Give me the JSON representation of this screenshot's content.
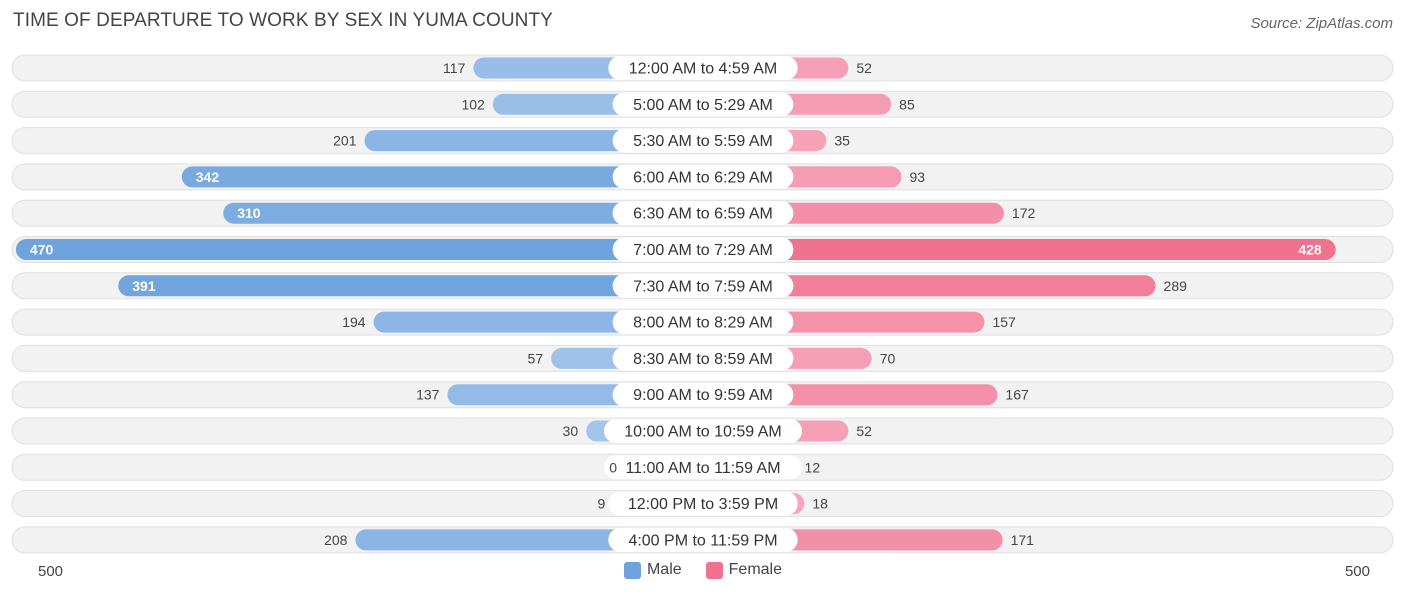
{
  "chart_data": {
    "type": "bar",
    "orientation": "horizontal-diverging",
    "title": "TIME OF DEPARTURE TO WORK BY SEX IN YUMA COUNTY",
    "source": "Source: ZipAtlas.com",
    "categories": [
      "12:00 AM to 4:59 AM",
      "5:00 AM to 5:29 AM",
      "5:30 AM to 5:59 AM",
      "6:00 AM to 6:29 AM",
      "6:30 AM to 6:59 AM",
      "7:00 AM to 7:29 AM",
      "7:30 AM to 7:59 AM",
      "8:00 AM to 8:29 AM",
      "8:30 AM to 8:59 AM",
      "9:00 AM to 9:59 AM",
      "10:00 AM to 10:59 AM",
      "11:00 AM to 11:59 AM",
      "12:00 PM to 3:59 PM",
      "4:00 PM to 11:59 PM"
    ],
    "series": [
      {
        "name": "Male",
        "values": [
          117,
          102,
          201,
          342,
          310,
          470,
          391,
          194,
          57,
          137,
          30,
          0,
          9,
          208
        ]
      },
      {
        "name": "Female",
        "values": [
          52,
          85,
          35,
          93,
          172,
          428,
          289,
          157,
          70,
          167,
          52,
          12,
          18,
          171
        ]
      }
    ],
    "axis_max": 500,
    "axis_left_label": "500",
    "axis_right_label": "500",
    "legend": [
      "Male",
      "Female"
    ],
    "legend_position": "bottom-center"
  },
  "colors": {
    "male": "#6fa3dd",
    "male_light": "#a7c7ec",
    "female": "#f0728f",
    "female_light": "#f7a8bf",
    "row_bg": "#f2f2f2",
    "row_border": "#e0e0e0",
    "text": "#444444"
  }
}
